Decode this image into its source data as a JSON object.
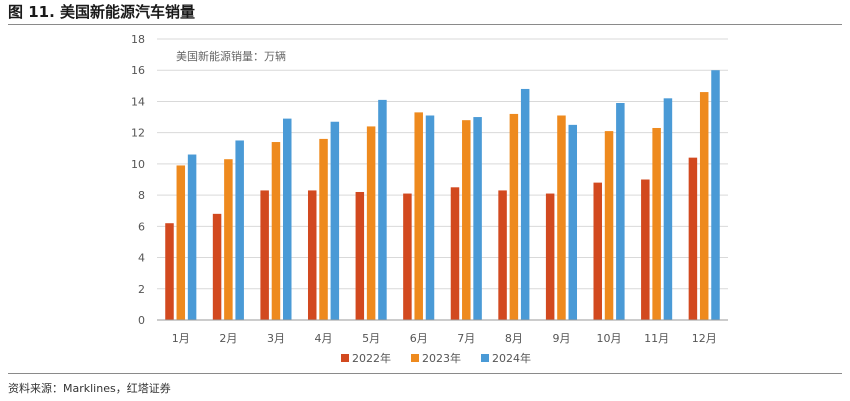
{
  "header": {
    "figure_title": "图 11. 美国新能源汽车销量"
  },
  "footer": {
    "source": "资料来源：Marklines，红塔证券"
  },
  "chart_data": {
    "type": "bar",
    "unit_label": "美国新能源销量：万辆",
    "categories": [
      "1月",
      "2月",
      "3月",
      "4月",
      "5月",
      "6月",
      "7月",
      "8月",
      "9月",
      "10月",
      "11月",
      "12月"
    ],
    "series": [
      {
        "name": "2022年",
        "color": "#D2491F",
        "values": [
          6.2,
          6.8,
          8.3,
          8.3,
          8.2,
          8.1,
          8.5,
          8.3,
          8.1,
          8.8,
          9.0,
          10.4
        ]
      },
      {
        "name": "2023年",
        "color": "#EE8A1E",
        "values": [
          9.9,
          10.3,
          11.4,
          11.6,
          12.4,
          13.3,
          12.8,
          13.2,
          13.1,
          12.1,
          12.3,
          14.6
        ]
      },
      {
        "name": "2024年",
        "color": "#4A9AD6",
        "values": [
          10.6,
          11.5,
          12.9,
          12.7,
          14.1,
          13.1,
          13.0,
          14.8,
          12.5,
          13.9,
          14.2,
          16.0
        ]
      }
    ],
    "ylim": [
      0,
      18
    ],
    "yticks": [
      0,
      2,
      4,
      6,
      8,
      10,
      12,
      14,
      16,
      18
    ],
    "grid": true,
    "legend": "bottom"
  }
}
